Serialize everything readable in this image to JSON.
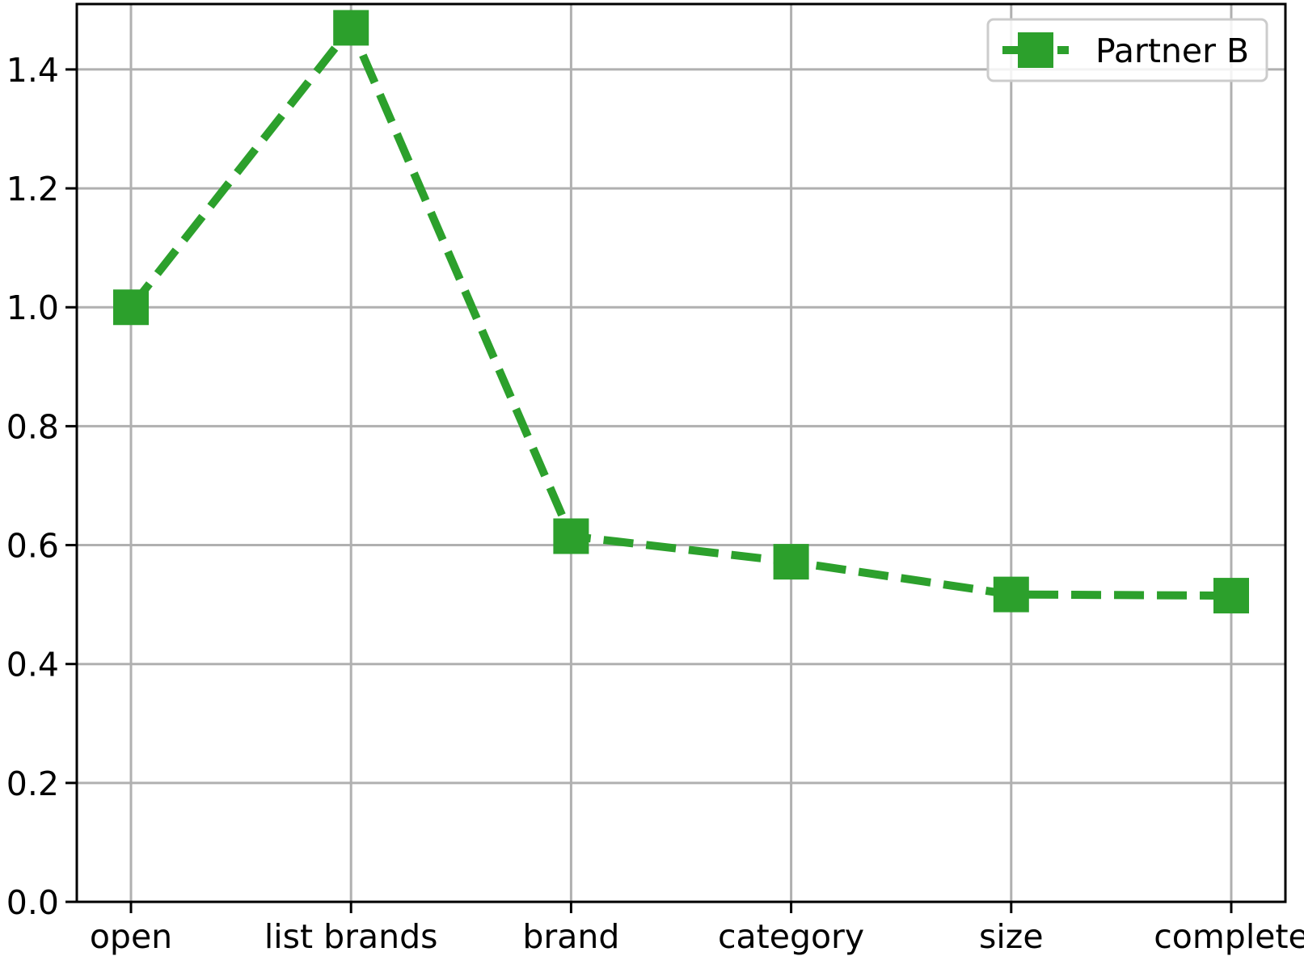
{
  "chart_data": {
    "type": "line",
    "categories": [
      "open",
      "list brands",
      "brand",
      "category",
      "size",
      "complete"
    ],
    "series": [
      {
        "name": "Partner B",
        "values": [
          1.0,
          1.47,
          0.615,
          0.572,
          0.517,
          0.515
        ],
        "color": "#2ca02c",
        "line_style": "dashed",
        "marker": "square"
      }
    ],
    "ylim": [
      0.0,
      1.51
    ],
    "yticks": [
      "0.0",
      "0.2",
      "0.4",
      "0.6",
      "0.8",
      "1.0",
      "1.2",
      "1.4"
    ],
    "ytick_values": [
      0.0,
      0.2,
      0.4,
      0.6,
      0.8,
      1.0,
      1.2,
      1.4
    ],
    "grid": true,
    "legend_position": "top-right",
    "title": "",
    "xlabel": "",
    "ylabel": ""
  }
}
